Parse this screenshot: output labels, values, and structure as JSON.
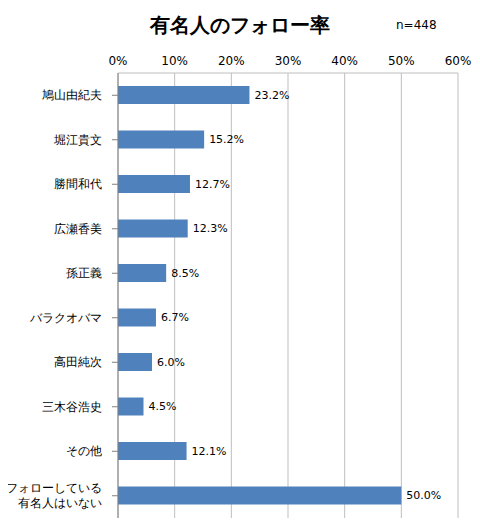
{
  "chart_data": {
    "type": "bar",
    "title": "有名人のフォロー率",
    "subtitle": "n=448",
    "orientation": "horizontal",
    "categories": [
      "鳩山由紀夫",
      "堀江貴文",
      "勝間和代",
      "広瀬香美",
      "孫正義",
      "バラクオバマ",
      "高田純次",
      "三木谷浩史",
      "その他",
      "フォローしている\n有名人はいない"
    ],
    "values": [
      23.2,
      15.2,
      12.7,
      12.3,
      8.5,
      6.7,
      6.0,
      4.5,
      12.1,
      50.0
    ],
    "value_labels": [
      "23.2%",
      "15.2%",
      "12.7%",
      "12.3%",
      "8.5%",
      "6.7%",
      "6.0%",
      "4.5%",
      "12.1%",
      "50.0%"
    ],
    "color": "#4f81bd",
    "xlim": [
      0,
      60
    ],
    "xticks": [
      {
        "value": 0,
        "label": "0%"
      },
      {
        "value": 10,
        "label": "10%"
      },
      {
        "value": 20,
        "label": "20%"
      },
      {
        "value": 30,
        "label": "30%"
      },
      {
        "value": 40,
        "label": "40%"
      },
      {
        "value": 50,
        "label": "50%"
      },
      {
        "value": 60,
        "label": "60%"
      }
    ],
    "grid": true,
    "data_labels": true
  }
}
